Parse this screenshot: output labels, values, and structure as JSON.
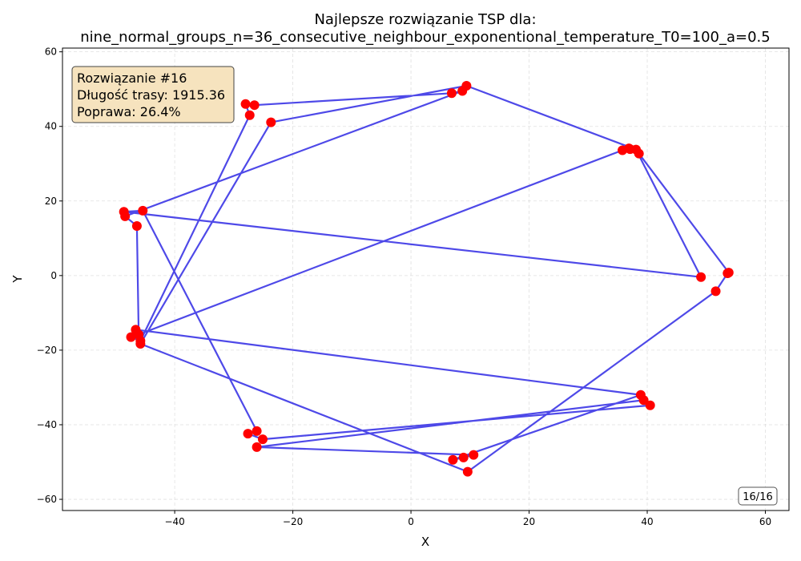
{
  "chart_data": {
    "type": "line",
    "title_line1": "Najlepsze rozwiązanie TSP dla:",
    "title_line2": "nine_normal_groups_n=36_consecutive_neighbour_exponentional_temperature_T0=100_a=0.5",
    "xlabel": "X",
    "ylabel": "Y",
    "xlim": [
      -59,
      64
    ],
    "ylim": [
      -63,
      61
    ],
    "xticks": [
      -40,
      -20,
      0,
      20,
      40,
      60
    ],
    "yticks": [
      -60,
      -40,
      -20,
      0,
      20,
      40,
      60
    ],
    "grid": true,
    "route_color": "#3b35e6",
    "point_color": "#ff0000",
    "series": [
      {
        "x": [
          -28.0,
          -26.5,
          6.9,
          8.7,
          -48.4,
          -46.4,
          -46.1,
          35.8,
          37.1,
          36.9,
          38.6,
          53.8,
          53.6,
          51.6,
          9.6,
          -45.8,
          -23.7,
          9.4,
          38.1,
          49.1,
          -48.6,
          -45.4,
          -26.1,
          -27.6,
          -25.1,
          40.5,
          39.4,
          -26.1,
          10.6,
          8.9,
          7.1,
          38.9,
          -46.6,
          -47.4,
          -45.8,
          -27.3,
          -28.0
        ],
        "y": [
          46.0,
          45.7,
          48.9,
          49.5,
          15.9,
          13.3,
          -15.8,
          33.6,
          33.9,
          34.1,
          32.7,
          0.8,
          0.6,
          -4.2,
          -52.6,
          -18.3,
          41.1,
          50.9,
          33.8,
          -0.4,
          17.1,
          17.4,
          -41.7,
          -42.4,
          -43.9,
          -34.8,
          -33.4,
          -46.0,
          -48.1,
          -48.8,
          -49.4,
          -32.0,
          -14.5,
          -16.5,
          -17.5,
          43.0,
          46.0
        ]
      }
    ],
    "info_box": {
      "line1": "Rozwiązanie #16",
      "line2": "Długość trasy: 1915.36",
      "line3": "Poprawa: 26.4%",
      "bg_color": "#f5deb3"
    },
    "counter": "16/16"
  }
}
